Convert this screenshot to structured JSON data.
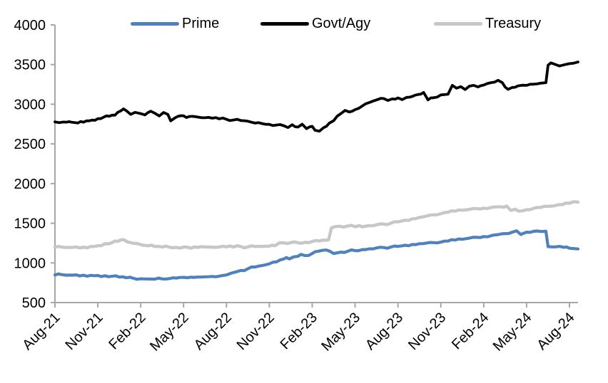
{
  "chart_data": {
    "type": "line",
    "title": "",
    "legend_position": "top",
    "grid": false,
    "axis_color": "#A6A6A6",
    "text_color": "#000000",
    "x_unit": "months since Aug-2021",
    "x_range": [
      0,
      36.6
    ],
    "y_axis": {
      "min": 500,
      "max": 4000,
      "step": 500,
      "ticks": [
        500,
        1000,
        1500,
        2000,
        2500,
        3000,
        3500,
        4000
      ]
    },
    "x_ticks": [
      {
        "label": "Aug-21",
        "t": 0
      },
      {
        "label": "Nov-21",
        "t": 3
      },
      {
        "label": "Feb-22",
        "t": 6
      },
      {
        "label": "May-22",
        "t": 9
      },
      {
        "label": "Aug-22",
        "t": 12
      },
      {
        "label": "Nov-22",
        "t": 15
      },
      {
        "label": "Feb-23",
        "t": 18
      },
      {
        "label": "May-23",
        "t": 21
      },
      {
        "label": "Aug-23",
        "t": 24
      },
      {
        "label": "Nov-23",
        "t": 27
      },
      {
        "label": "Feb-24",
        "t": 30
      },
      {
        "label": "May-24",
        "t": 33
      },
      {
        "label": "Aug-24",
        "t": 36
      }
    ],
    "series": [
      {
        "name": "Prime",
        "color": "#4F81BD",
        "line_width": 4.2,
        "points": [
          [
            0,
            848
          ],
          [
            0.5,
            852
          ],
          [
            1,
            846
          ],
          [
            1.5,
            849
          ],
          [
            2,
            845
          ],
          [
            2.5,
            843
          ],
          [
            3,
            841
          ],
          [
            3.5,
            838
          ],
          [
            4,
            831
          ],
          [
            4.5,
            821
          ],
          [
            5,
            812
          ],
          [
            5.5,
            805
          ],
          [
            6,
            800
          ],
          [
            6.5,
            797
          ],
          [
            7,
            795
          ],
          [
            7.5,
            798
          ],
          [
            8,
            802
          ],
          [
            8.3,
            812
          ],
          [
            8.7,
            816
          ],
          [
            9,
            818
          ],
          [
            9.3,
            813
          ],
          [
            9.7,
            818
          ],
          [
            10,
            821
          ],
          [
            10.5,
            825
          ],
          [
            11,
            829
          ],
          [
            11.5,
            833
          ],
          [
            11.9,
            845
          ],
          [
            12.3,
            868
          ],
          [
            12.7,
            888
          ],
          [
            13,
            905
          ],
          [
            13.5,
            926
          ],
          [
            14,
            948
          ],
          [
            14.5,
            967
          ],
          [
            15,
            988
          ],
          [
            15.5,
            1012
          ],
          [
            15.8,
            1040
          ],
          [
            16,
            1048
          ],
          [
            16.2,
            1068
          ],
          [
            16.4,
            1050
          ],
          [
            17,
            1082
          ],
          [
            17.2,
            1108
          ],
          [
            17.5,
            1092
          ],
          [
            18,
            1118
          ],
          [
            18.4,
            1145
          ],
          [
            18.7,
            1158
          ],
          [
            19,
            1162
          ],
          [
            19.2,
            1150
          ],
          [
            19.5,
            1118
          ],
          [
            19.8,
            1128
          ],
          [
            20,
            1136
          ],
          [
            20.5,
            1148
          ],
          [
            21,
            1154
          ],
          [
            21.5,
            1168
          ],
          [
            22,
            1178
          ],
          [
            22.5,
            1188
          ],
          [
            23,
            1194
          ],
          [
            23.5,
            1200
          ],
          [
            24,
            1208
          ],
          [
            24.5,
            1222
          ],
          [
            25,
            1232
          ],
          [
            25.5,
            1242
          ],
          [
            26,
            1250
          ],
          [
            26.5,
            1256
          ],
          [
            27,
            1262
          ],
          [
            27.5,
            1275
          ],
          [
            28,
            1288
          ],
          [
            28.5,
            1298
          ],
          [
            29,
            1312
          ],
          [
            29.5,
            1322
          ],
          [
            30,
            1332
          ],
          [
            30.5,
            1342
          ],
          [
            31,
            1356
          ],
          [
            31.5,
            1370
          ],
          [
            32,
            1388
          ],
          [
            32.3,
            1405
          ],
          [
            32.6,
            1358
          ],
          [
            33,
            1388
          ],
          [
            33.5,
            1398
          ],
          [
            34,
            1396
          ],
          [
            34.35,
            1398
          ],
          [
            34.5,
            1205
          ],
          [
            35,
            1202
          ],
          [
            35.3,
            1208
          ],
          [
            35.6,
            1196
          ],
          [
            36,
            1185
          ],
          [
            36.3,
            1180
          ],
          [
            36.6,
            1176
          ]
        ]
      },
      {
        "name": "Govt/Agy",
        "color": "#000000",
        "line_width": 3.8,
        "points": [
          [
            0,
            2778
          ],
          [
            0.3,
            2768
          ],
          [
            0.6,
            2776
          ],
          [
            1,
            2780
          ],
          [
            1.4,
            2768
          ],
          [
            1.8,
            2782
          ],
          [
            2.2,
            2790
          ],
          [
            2.6,
            2800
          ],
          [
            3,
            2818
          ],
          [
            3.4,
            2836
          ],
          [
            3.8,
            2848
          ],
          [
            4.2,
            2862
          ],
          [
            4.6,
            2915
          ],
          [
            4.8,
            2942
          ],
          [
            5,
            2918
          ],
          [
            5.3,
            2872
          ],
          [
            5.6,
            2898
          ],
          [
            6,
            2882
          ],
          [
            6.3,
            2866
          ],
          [
            6.7,
            2912
          ],
          [
            7,
            2885
          ],
          [
            7.3,
            2852
          ],
          [
            7.6,
            2896
          ],
          [
            7.9,
            2872
          ],
          [
            8.1,
            2790
          ],
          [
            8.4,
            2828
          ],
          [
            8.8,
            2856
          ],
          [
            9.2,
            2832
          ],
          [
            9.6,
            2848
          ],
          [
            10,
            2838
          ],
          [
            10.5,
            2830
          ],
          [
            11,
            2824
          ],
          [
            11.5,
            2816
          ],
          [
            12,
            2810
          ],
          [
            12.5,
            2802
          ],
          [
            13,
            2795
          ],
          [
            13.5,
            2786
          ],
          [
            14,
            2762
          ],
          [
            14.5,
            2756
          ],
          [
            15,
            2746
          ],
          [
            15.5,
            2738
          ],
          [
            16,
            2730
          ],
          [
            16.3,
            2706
          ],
          [
            16.6,
            2742
          ],
          [
            17,
            2712
          ],
          [
            17.3,
            2748
          ],
          [
            17.6,
            2692
          ],
          [
            18,
            2722
          ],
          [
            18.2,
            2672
          ],
          [
            18.5,
            2660
          ],
          [
            18.8,
            2705
          ],
          [
            19.2,
            2762
          ],
          [
            19.5,
            2792
          ],
          [
            20,
            2882
          ],
          [
            20.3,
            2922
          ],
          [
            20.6,
            2902
          ],
          [
            21,
            2932
          ],
          [
            21.5,
            2978
          ],
          [
            22,
            3022
          ],
          [
            22.3,
            3042
          ],
          [
            22.6,
            3060
          ],
          [
            23,
            3072
          ],
          [
            23.3,
            3048
          ],
          [
            23.6,
            3068
          ],
          [
            24,
            3080
          ],
          [
            24.3,
            3058
          ],
          [
            24.6,
            3086
          ],
          [
            25,
            3098
          ],
          [
            25.4,
            3122
          ],
          [
            25.8,
            3148
          ],
          [
            26.1,
            3055
          ],
          [
            26.5,
            3082
          ],
          [
            27,
            3118
          ],
          [
            27.5,
            3126
          ],
          [
            27.8,
            3238
          ],
          [
            28.1,
            3202
          ],
          [
            28.4,
            3222
          ],
          [
            28.7,
            3185
          ],
          [
            29,
            3228
          ],
          [
            29.3,
            3238
          ],
          [
            29.6,
            3218
          ],
          [
            30,
            3242
          ],
          [
            30.5,
            3272
          ],
          [
            31,
            3302
          ],
          [
            31.3,
            3272
          ],
          [
            31.7,
            3188
          ],
          [
            32,
            3212
          ],
          [
            32.4,
            3232
          ],
          [
            33,
            3238
          ],
          [
            33.5,
            3252
          ],
          [
            34,
            3266
          ],
          [
            34.35,
            3272
          ],
          [
            34.5,
            3492
          ],
          [
            34.7,
            3522
          ],
          [
            35,
            3502
          ],
          [
            35.3,
            3482
          ],
          [
            35.6,
            3496
          ],
          [
            36,
            3512
          ],
          [
            36.3,
            3518
          ],
          [
            36.6,
            3532
          ]
        ]
      },
      {
        "name": "Treasury",
        "color": "#C7C7C7",
        "line_width": 4.4,
        "points": [
          [
            0,
            1196
          ],
          [
            0.5,
            1199
          ],
          [
            1,
            1195
          ],
          [
            1.5,
            1201
          ],
          [
            2,
            1198
          ],
          [
            2.5,
            1206
          ],
          [
            3,
            1216
          ],
          [
            3.5,
            1242
          ],
          [
            4,
            1256
          ],
          [
            4.4,
            1272
          ],
          [
            4.8,
            1292
          ],
          [
            5.1,
            1262
          ],
          [
            5.5,
            1246
          ],
          [
            6,
            1230
          ],
          [
            6.5,
            1216
          ],
          [
            7,
            1206
          ],
          [
            7.5,
            1200
          ],
          [
            8,
            1198
          ],
          [
            8.5,
            1196
          ],
          [
            9,
            1201
          ],
          [
            9.5,
            1186
          ],
          [
            10,
            1196
          ],
          [
            10.5,
            1201
          ],
          [
            11,
            1198
          ],
          [
            11.5,
            1201
          ],
          [
            12,
            1203
          ],
          [
            12.5,
            1200
          ],
          [
            13,
            1206
          ],
          [
            13.5,
            1201
          ],
          [
            14,
            1206
          ],
          [
            14.5,
            1208
          ],
          [
            15,
            1212
          ],
          [
            15.4,
            1216
          ],
          [
            15.7,
            1252
          ],
          [
            16,
            1254
          ],
          [
            16.5,
            1256
          ],
          [
            17,
            1254
          ],
          [
            17.5,
            1260
          ],
          [
            18,
            1270
          ],
          [
            18.5,
            1276
          ],
          [
            19,
            1286
          ],
          [
            19.15,
            1292
          ],
          [
            19.35,
            1442
          ],
          [
            19.6,
            1458
          ],
          [
            19.9,
            1462
          ],
          [
            20.2,
            1452
          ],
          [
            20.5,
            1466
          ],
          [
            21,
            1456
          ],
          [
            21.3,
            1470
          ],
          [
            21.7,
            1462
          ],
          [
            22,
            1470
          ],
          [
            22.5,
            1480
          ],
          [
            23,
            1490
          ],
          [
            23.5,
            1500
          ],
          [
            24,
            1518
          ],
          [
            24.5,
            1538
          ],
          [
            25,
            1555
          ],
          [
            25.5,
            1574
          ],
          [
            26,
            1590
          ],
          [
            26.5,
            1606
          ],
          [
            27,
            1620
          ],
          [
            27.5,
            1638
          ],
          [
            28,
            1652
          ],
          [
            28.5,
            1664
          ],
          [
            29,
            1674
          ],
          [
            29.5,
            1684
          ],
          [
            30,
            1690
          ],
          [
            30.5,
            1698
          ],
          [
            31,
            1706
          ],
          [
            31.4,
            1702
          ],
          [
            31.6,
            1716
          ],
          [
            31.9,
            1662
          ],
          [
            32.2,
            1676
          ],
          [
            32.7,
            1656
          ],
          [
            33,
            1670
          ],
          [
            33.5,
            1688
          ],
          [
            34,
            1700
          ],
          [
            34.5,
            1712
          ],
          [
            35,
            1722
          ],
          [
            35.5,
            1736
          ],
          [
            36,
            1752
          ],
          [
            36.6,
            1766
          ]
        ]
      }
    ]
  }
}
